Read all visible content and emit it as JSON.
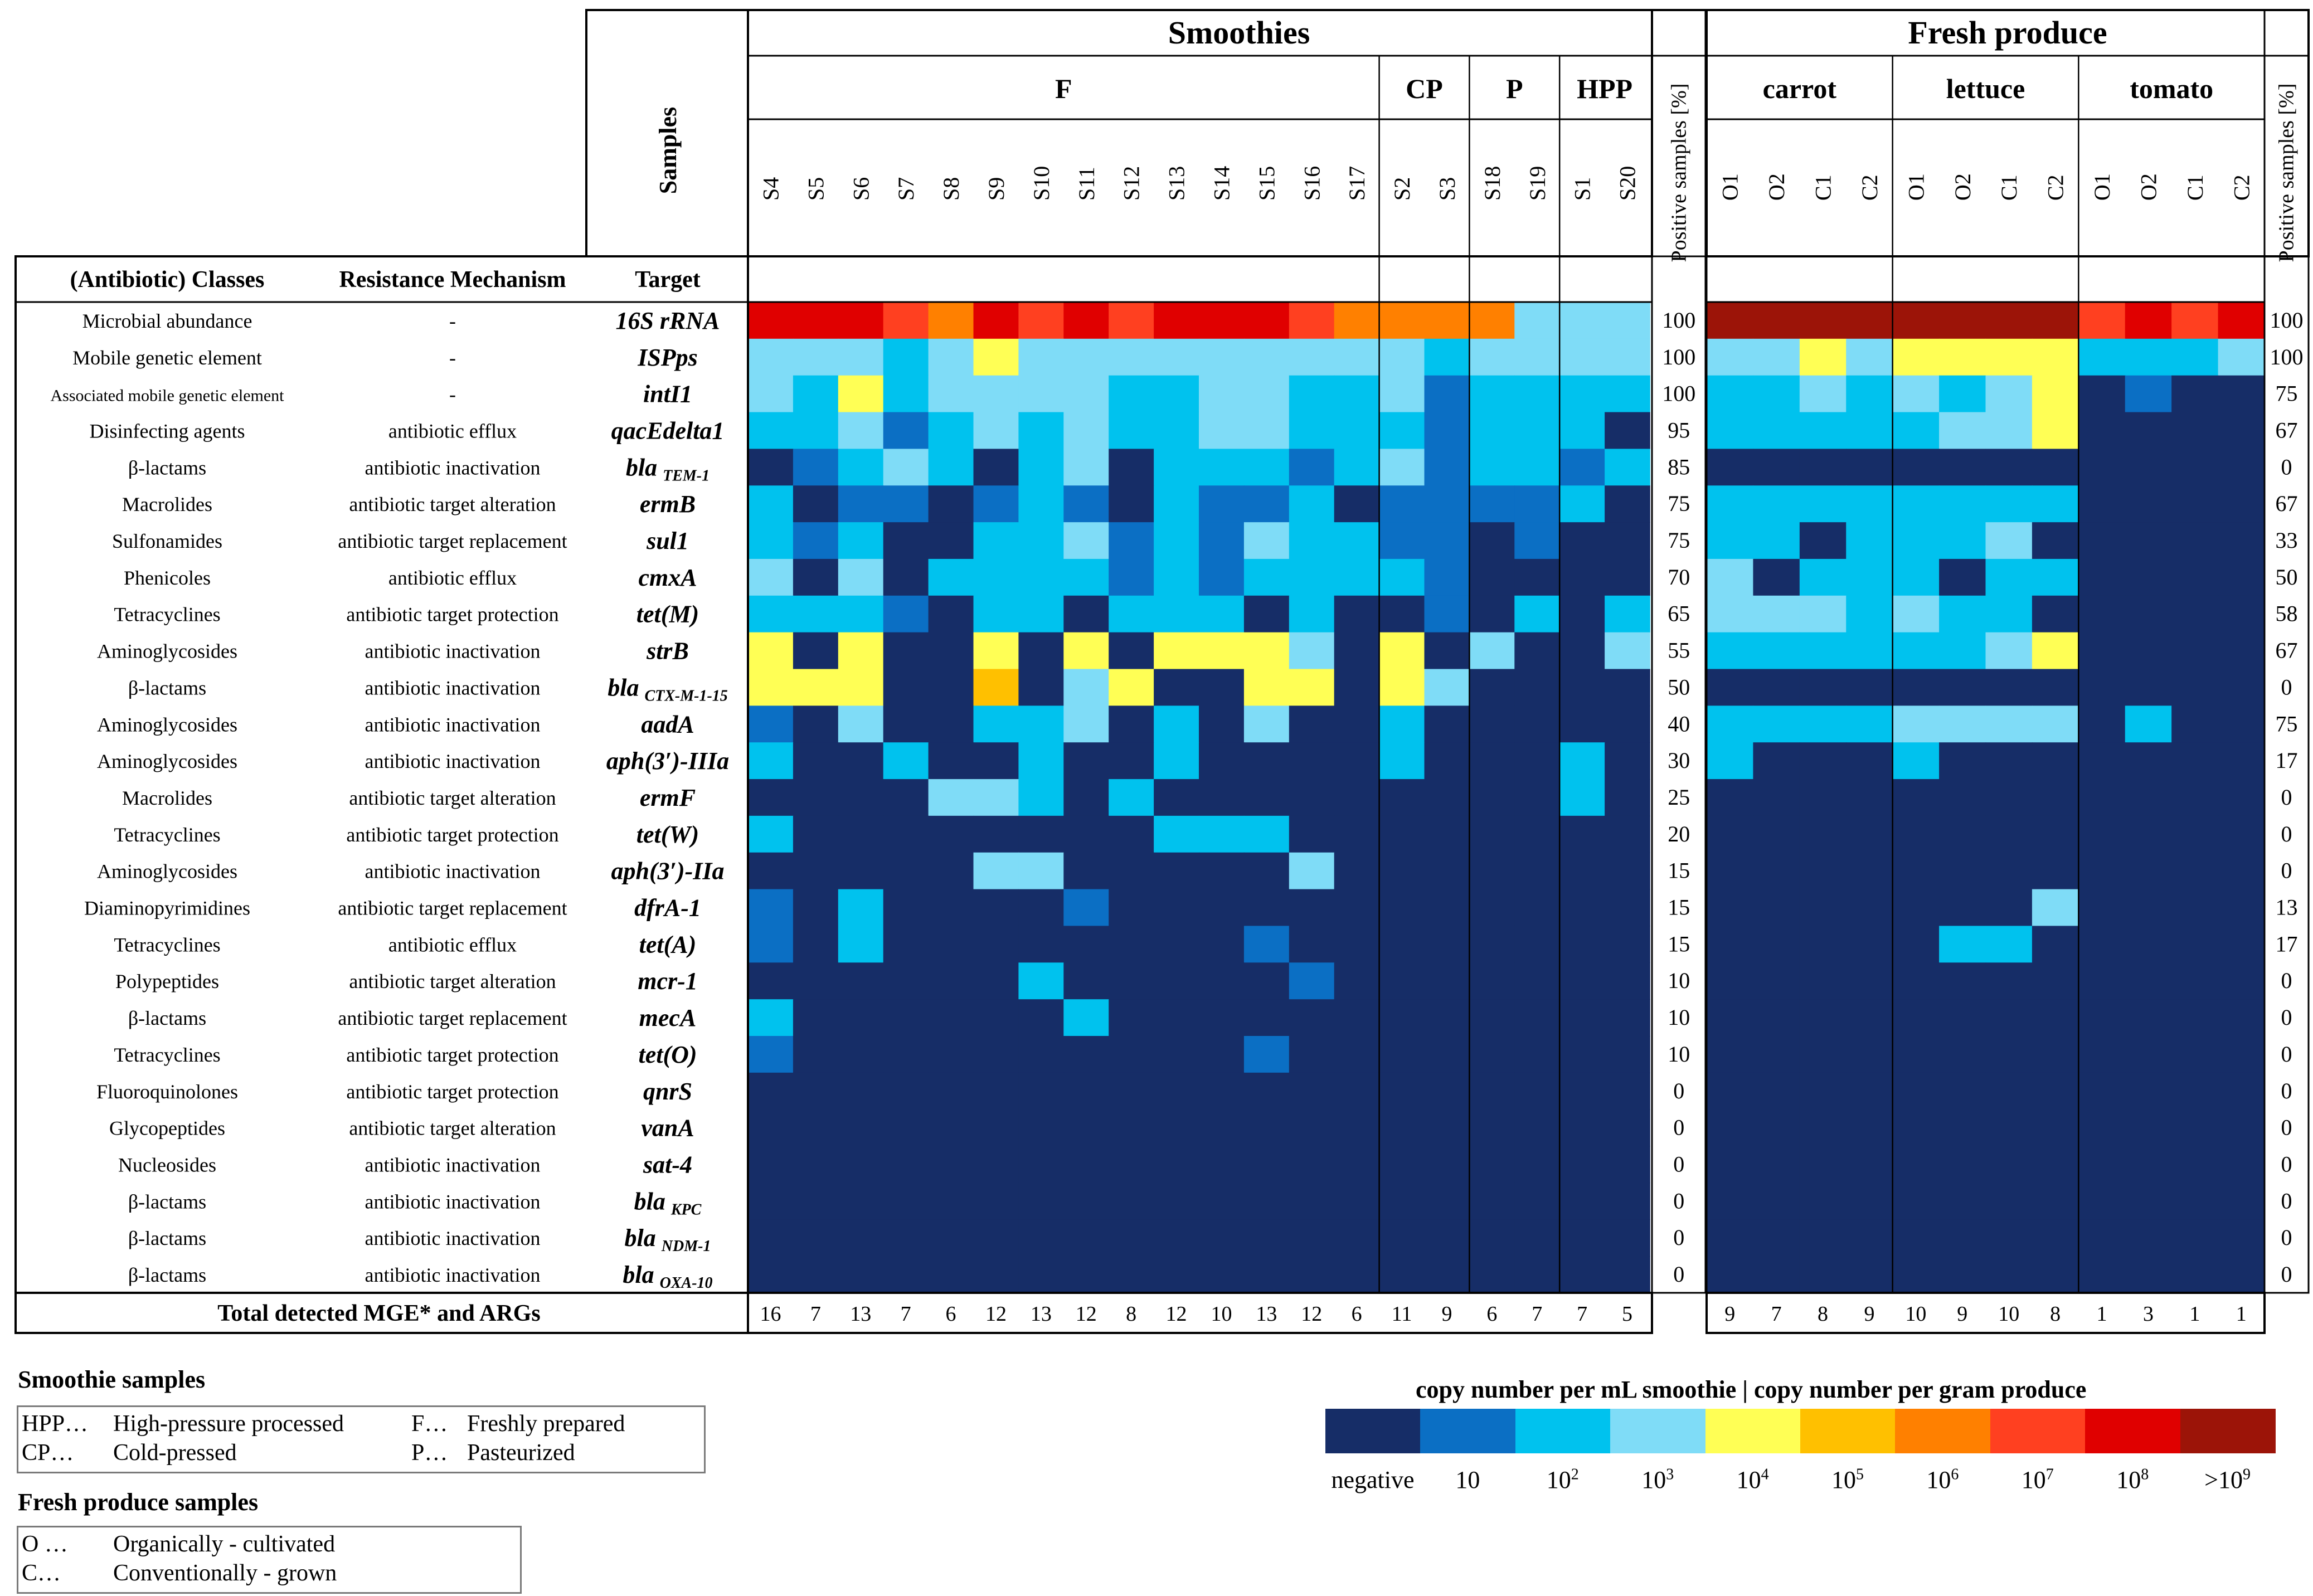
{
  "chart_data": {
    "type": "heatmap",
    "header": {
      "samples_label": "Samples",
      "group_smoothies": "Smoothies",
      "group_fresh": "Fresh produce",
      "positive_label": "Positive samples [%]",
      "col_class": "(Antibiotic) Classes",
      "col_mechanism": "Resistance Mechanism",
      "col_target": "Target",
      "total_label": "Total detected MGE* and ARGs"
    },
    "smoothie_subgroups": [
      {
        "name": "F",
        "columns": [
          "S4",
          "S5",
          "S6",
          "S7",
          "S8",
          "S9",
          "S10",
          "S11",
          "S12",
          "S13",
          "S14",
          "S15",
          "S16",
          "S17"
        ]
      },
      {
        "name": "CP",
        "columns": [
          "S2",
          "S3"
        ]
      },
      {
        "name": "P",
        "columns": [
          "S18",
          "S19"
        ]
      },
      {
        "name": "HPP",
        "columns": [
          "S1",
          "S20"
        ]
      }
    ],
    "produce_subgroups": [
      {
        "name": "carrot",
        "columns": [
          "O1",
          "O2",
          "C1",
          "C2"
        ]
      },
      {
        "name": "lettuce",
        "columns": [
          "O1",
          "O2",
          "C1",
          "C2"
        ]
      },
      {
        "name": "tomato",
        "columns": [
          "O1",
          "O2",
          "C1",
          "C2"
        ]
      }
    ],
    "rows": [
      {
        "class": "Microbial abundance",
        "mechanism": "-",
        "target": "16S rRNA",
        "smoothie_pct": "100",
        "produce_pct": "100"
      },
      {
        "class": "Mobile genetic element",
        "mechanism": "-",
        "target": "ISPps",
        "smoothie_pct": "100",
        "produce_pct": "100"
      },
      {
        "class": "Associated mobile genetic element",
        "mechanism": "-",
        "target": "intI1",
        "smoothie_pct": "100",
        "produce_pct": "75"
      },
      {
        "class": "Disinfecting agents",
        "mechanism": "antibiotic efflux",
        "target": "qacEdelta1",
        "smoothie_pct": "95",
        "produce_pct": "67"
      },
      {
        "class": "β-lactams",
        "mechanism": "antibiotic inactivation",
        "target": "bla",
        "sub": "TEM-1",
        "smoothie_pct": "85",
        "produce_pct": "0"
      },
      {
        "class": "Macrolides",
        "mechanism": "antibiotic target alteration",
        "target": "ermB",
        "smoothie_pct": "75",
        "produce_pct": "67"
      },
      {
        "class": "Sulfonamides",
        "mechanism": "antibiotic target replacement",
        "target": "sul1",
        "smoothie_pct": "75",
        "produce_pct": "33"
      },
      {
        "class": "Phenicoles",
        "mechanism": "antibiotic efflux",
        "target": "cmxA",
        "smoothie_pct": "70",
        "produce_pct": "50"
      },
      {
        "class": "Tetracyclines",
        "mechanism": "antibiotic target protection",
        "target": "tet(M)",
        "smoothie_pct": "65",
        "produce_pct": "58"
      },
      {
        "class": "Aminoglycosides",
        "mechanism": "antibiotic inactivation",
        "target": "strB",
        "smoothie_pct": "55",
        "produce_pct": "67"
      },
      {
        "class": "β-lactams",
        "mechanism": "antibiotic inactivation",
        "target": "bla",
        "sub": "CTX-M-1-15",
        "smoothie_pct": "50",
        "produce_pct": "0"
      },
      {
        "class": "Aminoglycosides",
        "mechanism": "antibiotic inactivation",
        "target": "aadA",
        "smoothie_pct": "40",
        "produce_pct": "75"
      },
      {
        "class": "Aminoglycosides",
        "mechanism": "antibiotic inactivation",
        "target": "aph(3′)-IIIa",
        "smoothie_pct": "30",
        "produce_pct": "17"
      },
      {
        "class": "Macrolides",
        "mechanism": "antibiotic target alteration",
        "target": "ermF",
        "smoothie_pct": "25",
        "produce_pct": "0"
      },
      {
        "class": "Tetracyclines",
        "mechanism": "antibiotic target protection",
        "target": "tet(W)",
        "smoothie_pct": "20",
        "produce_pct": "0"
      },
      {
        "class": "Aminoglycosides",
        "mechanism": "antibiotic inactivation",
        "target": "aph(3′)-IIa",
        "smoothie_pct": "15",
        "produce_pct": "0"
      },
      {
        "class": "Diaminopyrimidines",
        "mechanism": "antibiotic target replacement",
        "target": "dfrA-1",
        "smoothie_pct": "15",
        "produce_pct": "13"
      },
      {
        "class": "Tetracyclines",
        "mechanism": "antibiotic efflux",
        "target": "tet(A)",
        "smoothie_pct": "15",
        "produce_pct": "17"
      },
      {
        "class": "Polypeptides",
        "mechanism": "antibiotic target alteration",
        "target": "mcr-1",
        "smoothie_pct": "10",
        "produce_pct": "0"
      },
      {
        "class": "β-lactams",
        "mechanism": "antibiotic target replacement",
        "target": "mecA",
        "smoothie_pct": "10",
        "produce_pct": "0"
      },
      {
        "class": "Tetracyclines",
        "mechanism": "antibiotic target protection",
        "target": "tet(O)",
        "smoothie_pct": "10",
        "produce_pct": "0"
      },
      {
        "class": "Fluoroquinolones",
        "mechanism": "antibiotic target protection",
        "target": "qnrS",
        "smoothie_pct": "0",
        "produce_pct": "0"
      },
      {
        "class": "Glycopeptides",
        "mechanism": "antibiotic target alteration",
        "target": "vanA",
        "smoothie_pct": "0",
        "produce_pct": "0"
      },
      {
        "class": "Nucleosides",
        "mechanism": "antibiotic inactivation",
        "target": "sat-4",
        "smoothie_pct": "0",
        "produce_pct": "0"
      },
      {
        "class": "β-lactams",
        "mechanism": "antibiotic inactivation",
        "target": "bla",
        "sub": "KPC",
        "smoothie_pct": "0",
        "produce_pct": "0"
      },
      {
        "class": "β-lactams",
        "mechanism": "antibiotic inactivation",
        "target": "bla",
        "sub": "NDM-1",
        "smoothie_pct": "0",
        "produce_pct": "0"
      },
      {
        "class": "β-lactams",
        "mechanism": "antibiotic inactivation",
        "target": "bla",
        "sub": "OXA-10",
        "smoothie_pct": "0",
        "produce_pct": "0"
      }
    ],
    "smoothie_levels": [
      [
        8,
        8,
        8,
        7,
        6,
        8,
        7,
        8,
        7,
        8,
        8,
        8,
        7,
        6,
        6,
        6,
        6,
        3,
        3,
        3
      ],
      [
        3,
        3,
        3,
        2,
        3,
        4,
        3,
        3,
        3,
        3,
        3,
        3,
        3,
        3,
        3,
        2,
        3,
        3,
        3,
        3
      ],
      [
        3,
        2,
        4,
        2,
        3,
        3,
        3,
        3,
        2,
        2,
        3,
        3,
        2,
        2,
        3,
        1,
        2,
        2,
        2,
        2
      ],
      [
        2,
        2,
        3,
        1,
        2,
        3,
        2,
        3,
        2,
        2,
        3,
        3,
        2,
        2,
        2,
        1,
        2,
        2,
        2,
        0
      ],
      [
        0,
        1,
        2,
        3,
        2,
        0,
        2,
        3,
        0,
        2,
        2,
        2,
        1,
        2,
        3,
        1,
        2,
        2,
        1,
        2
      ],
      [
        2,
        0,
        1,
        1,
        0,
        1,
        2,
        1,
        0,
        2,
        1,
        1,
        2,
        0,
        1,
        1,
        1,
        1,
        2,
        0
      ],
      [
        2,
        1,
        2,
        0,
        0,
        2,
        2,
        3,
        1,
        2,
        1,
        3,
        2,
        2,
        1,
        1,
        0,
        1,
        0,
        0
      ],
      [
        3,
        0,
        3,
        0,
        2,
        2,
        2,
        2,
        1,
        2,
        1,
        2,
        2,
        2,
        2,
        1,
        0,
        0,
        0,
        0
      ],
      [
        2,
        2,
        2,
        1,
        0,
        2,
        2,
        0,
        2,
        2,
        2,
        0,
        2,
        0,
        0,
        1,
        0,
        2,
        0,
        2
      ],
      [
        4,
        0,
        4,
        0,
        0,
        4,
        0,
        4,
        0,
        4,
        4,
        4,
        3,
        0,
        4,
        0,
        3,
        0,
        0,
        3
      ],
      [
        4,
        4,
        4,
        0,
        0,
        5,
        0,
        3,
        4,
        0,
        0,
        4,
        4,
        0,
        4,
        3,
        0,
        0,
        0,
        0
      ],
      [
        1,
        0,
        3,
        0,
        0,
        2,
        2,
        3,
        0,
        2,
        0,
        3,
        0,
        0,
        2,
        0,
        0,
        0,
        0,
        0
      ],
      [
        2,
        0,
        0,
        2,
        0,
        0,
        2,
        0,
        0,
        2,
        0,
        0,
        0,
        0,
        2,
        0,
        0,
        0,
        2,
        0
      ],
      [
        0,
        0,
        0,
        0,
        3,
        3,
        2,
        0,
        2,
        0,
        0,
        0,
        0,
        0,
        0,
        0,
        0,
        0,
        2,
        0
      ],
      [
        2,
        0,
        0,
        0,
        0,
        0,
        0,
        0,
        0,
        2,
        2,
        2,
        0,
        0,
        0,
        0,
        0,
        0,
        0,
        0
      ],
      [
        0,
        0,
        0,
        0,
        0,
        3,
        3,
        0,
        0,
        0,
        0,
        0,
        3,
        0,
        0,
        0,
        0,
        0,
        0,
        0
      ],
      [
        1,
        0,
        2,
        0,
        0,
        0,
        0,
        1,
        0,
        0,
        0,
        0,
        0,
        0,
        0,
        0,
        0,
        0,
        0,
        0
      ],
      [
        1,
        0,
        2,
        0,
        0,
        0,
        0,
        0,
        0,
        0,
        0,
        1,
        0,
        0,
        0,
        0,
        0,
        0,
        0,
        0
      ],
      [
        0,
        0,
        0,
        0,
        0,
        0,
        2,
        0,
        0,
        0,
        0,
        0,
        1,
        0,
        0,
        0,
        0,
        0,
        0,
        0
      ],
      [
        2,
        0,
        0,
        0,
        0,
        0,
        0,
        2,
        0,
        0,
        0,
        0,
        0,
        0,
        0,
        0,
        0,
        0,
        0,
        0
      ],
      [
        1,
        0,
        0,
        0,
        0,
        0,
        0,
        0,
        0,
        0,
        0,
        1,
        0,
        0,
        0,
        0,
        0,
        0,
        0,
        0
      ],
      [
        0,
        0,
        0,
        0,
        0,
        0,
        0,
        0,
        0,
        0,
        0,
        0,
        0,
        0,
        0,
        0,
        0,
        0,
        0,
        0
      ],
      [
        0,
        0,
        0,
        0,
        0,
        0,
        0,
        0,
        0,
        0,
        0,
        0,
        0,
        0,
        0,
        0,
        0,
        0,
        0,
        0
      ],
      [
        0,
        0,
        0,
        0,
        0,
        0,
        0,
        0,
        0,
        0,
        0,
        0,
        0,
        0,
        0,
        0,
        0,
        0,
        0,
        0
      ],
      [
        0,
        0,
        0,
        0,
        0,
        0,
        0,
        0,
        0,
        0,
        0,
        0,
        0,
        0,
        0,
        0,
        0,
        0,
        0,
        0
      ],
      [
        0,
        0,
        0,
        0,
        0,
        0,
        0,
        0,
        0,
        0,
        0,
        0,
        0,
        0,
        0,
        0,
        0,
        0,
        0,
        0
      ],
      [
        0,
        0,
        0,
        0,
        0,
        0,
        0,
        0,
        0,
        0,
        0,
        0,
        0,
        0,
        0,
        0,
        0,
        0,
        0,
        0
      ]
    ],
    "produce_levels": [
      [
        9,
        9,
        9,
        9,
        9,
        9,
        9,
        9,
        7,
        8,
        7,
        8
      ],
      [
        3,
        3,
        4,
        3,
        4,
        4,
        4,
        4,
        2,
        2,
        2,
        3
      ],
      [
        2,
        2,
        3,
        2,
        3,
        2,
        3,
        4,
        0,
        1,
        0,
        0
      ],
      [
        2,
        2,
        2,
        2,
        2,
        3,
        3,
        4,
        0,
        0,
        0,
        0
      ],
      [
        0,
        0,
        0,
        0,
        0,
        0,
        0,
        0,
        0,
        0,
        0,
        0
      ],
      [
        2,
        2,
        2,
        2,
        2,
        2,
        2,
        2,
        0,
        0,
        0,
        0
      ],
      [
        2,
        2,
        0,
        2,
        2,
        2,
        3,
        0,
        0,
        0,
        0,
        0
      ],
      [
        3,
        0,
        2,
        2,
        2,
        0,
        2,
        2,
        0,
        0,
        0,
        0
      ],
      [
        3,
        3,
        3,
        2,
        3,
        2,
        2,
        0,
        0,
        0,
        0,
        0
      ],
      [
        2,
        2,
        2,
        2,
        2,
        2,
        3,
        4,
        0,
        0,
        0,
        0
      ],
      [
        0,
        0,
        0,
        0,
        0,
        0,
        0,
        0,
        0,
        0,
        0,
        0
      ],
      [
        2,
        2,
        2,
        2,
        3,
        3,
        3,
        3,
        0,
        2,
        0,
        0
      ],
      [
        2,
        0,
        0,
        0,
        2,
        0,
        0,
        0,
        0,
        0,
        0,
        0
      ],
      [
        0,
        0,
        0,
        0,
        0,
        0,
        0,
        0,
        0,
        0,
        0,
        0
      ],
      [
        0,
        0,
        0,
        0,
        0,
        0,
        0,
        0,
        0,
        0,
        0,
        0
      ],
      [
        0,
        0,
        0,
        0,
        0,
        0,
        0,
        0,
        0,
        0,
        0,
        0
      ],
      [
        0,
        0,
        0,
        0,
        0,
        0,
        0,
        3,
        0,
        0,
        0,
        0
      ],
      [
        0,
        0,
        0,
        0,
        0,
        2,
        2,
        0,
        0,
        0,
        0,
        0
      ],
      [
        0,
        0,
        0,
        0,
        0,
        0,
        0,
        0,
        0,
        0,
        0,
        0
      ],
      [
        0,
        0,
        0,
        0,
        0,
        0,
        0,
        0,
        0,
        0,
        0,
        0
      ],
      [
        0,
        0,
        0,
        0,
        0,
        0,
        0,
        0,
        0,
        0,
        0,
        0
      ],
      [
        0,
        0,
        0,
        0,
        0,
        0,
        0,
        0,
        0,
        0,
        0,
        0
      ],
      [
        0,
        0,
        0,
        0,
        0,
        0,
        0,
        0,
        0,
        0,
        0,
        0
      ],
      [
        0,
        0,
        0,
        0,
        0,
        0,
        0,
        0,
        0,
        0,
        0,
        0
      ],
      [
        0,
        0,
        0,
        0,
        0,
        0,
        0,
        0,
        0,
        0,
        0,
        0
      ],
      [
        0,
        0,
        0,
        0,
        0,
        0,
        0,
        0,
        0,
        0,
        0,
        0
      ],
      [
        0,
        0,
        0,
        0,
        0,
        0,
        0,
        0,
        0,
        0,
        0,
        0
      ]
    ],
    "smoothie_totals": [
      "16",
      "7",
      "13",
      "7",
      "6",
      "12",
      "13",
      "12",
      "8",
      "12",
      "10",
      "13",
      "12",
      "6",
      "11",
      "9",
      "6",
      "7",
      "7",
      "5"
    ],
    "produce_totals": [
      "9",
      "7",
      "8",
      "9",
      "10",
      "9",
      "10",
      "8",
      "1",
      "3",
      "1",
      "1"
    ],
    "colorscale": {
      "title": "copy number per mL smoothie | copy number per gram produce",
      "colors": [
        "#162d67",
        "#0b6fc4",
        "#00c2ee",
        "#7fdcf7",
        "#ffff55",
        "#ffc000",
        "#ff8000",
        "#ff4020",
        "#e00000",
        "#9c1408"
      ],
      "labels": [
        {
          "base": "negative",
          "exp": ""
        },
        {
          "base": "10",
          "exp": ""
        },
        {
          "base": "10",
          "exp": "2"
        },
        {
          "base": "10",
          "exp": "3"
        },
        {
          "base": "10",
          "exp": "4"
        },
        {
          "base": "10",
          "exp": "5"
        },
        {
          "base": "10",
          "exp": "6"
        },
        {
          "base": "10",
          "exp": "7"
        },
        {
          "base": "10",
          "exp": "8"
        },
        {
          "base": ">10",
          "exp": "9"
        }
      ]
    }
  },
  "legend_smoothie": {
    "title": "Smoothie samples",
    "hpp_abbr": "HPP…",
    "hpp_desc": "High-pressure processed",
    "f_abbr": "F…",
    "f_desc": "Freshly prepared",
    "cp_abbr": "CP…",
    "cp_desc": "Cold-pressed",
    "p_abbr": "P…",
    "p_desc": "Pasteurized"
  },
  "legend_produce": {
    "title": "Fresh produce  samples",
    "o_abbr": "O …",
    "o_desc": "Organically - cultivated",
    "c_abbr": "C…",
    "c_desc": "Conventionally - grown"
  }
}
